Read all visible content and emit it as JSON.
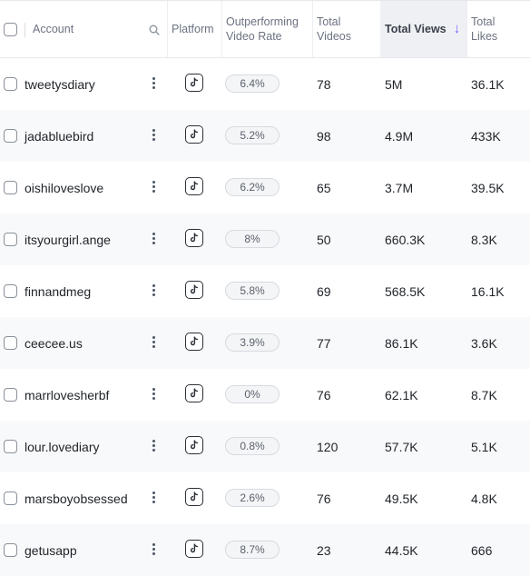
{
  "table": {
    "headers": {
      "account": "Account",
      "platform": "Platform",
      "outperforming": "Outperforming\nVideo Rate",
      "total_videos": "Total\nVideos",
      "total_views": "Total Views",
      "total_likes": "Total\nLikes"
    },
    "sort": {
      "column": "total_views",
      "direction": "descending",
      "accent": "#7c5cff"
    },
    "platform_icon": "tiktok-icon",
    "rows": [
      {
        "account": "tweetysdiary",
        "rate": "6.4%",
        "videos": "78",
        "views": "5M",
        "likes": "36.1K"
      },
      {
        "account": "jadabluebird",
        "rate": "5.2%",
        "videos": "98",
        "views": "4.9M",
        "likes": "433K"
      },
      {
        "account": "oishiloveslove",
        "rate": "6.2%",
        "videos": "65",
        "views": "3.7M",
        "likes": "39.5K"
      },
      {
        "account": "itsyourgirl.ange",
        "rate": "8%",
        "videos": "50",
        "views": "660.3K",
        "likes": "8.3K"
      },
      {
        "account": "finnandmeg",
        "rate": "5.8%",
        "videos": "69",
        "views": "568.5K",
        "likes": "16.1K"
      },
      {
        "account": "ceecee.us",
        "rate": "3.9%",
        "videos": "77",
        "views": "86.1K",
        "likes": "3.6K"
      },
      {
        "account": "marrlovesherbf",
        "rate": "0%",
        "videos": "76",
        "views": "62.1K",
        "likes": "8.7K"
      },
      {
        "account": "lour.lovediary",
        "rate": "0.8%",
        "videos": "120",
        "views": "57.7K",
        "likes": "5.1K"
      },
      {
        "account": "marsboyobsessed",
        "rate": "2.6%",
        "videos": "76",
        "views": "49.5K",
        "likes": "4.8K"
      },
      {
        "account": "getusapp",
        "rate": "8.7%",
        "videos": "23",
        "views": "44.5K",
        "likes": "666"
      }
    ]
  }
}
